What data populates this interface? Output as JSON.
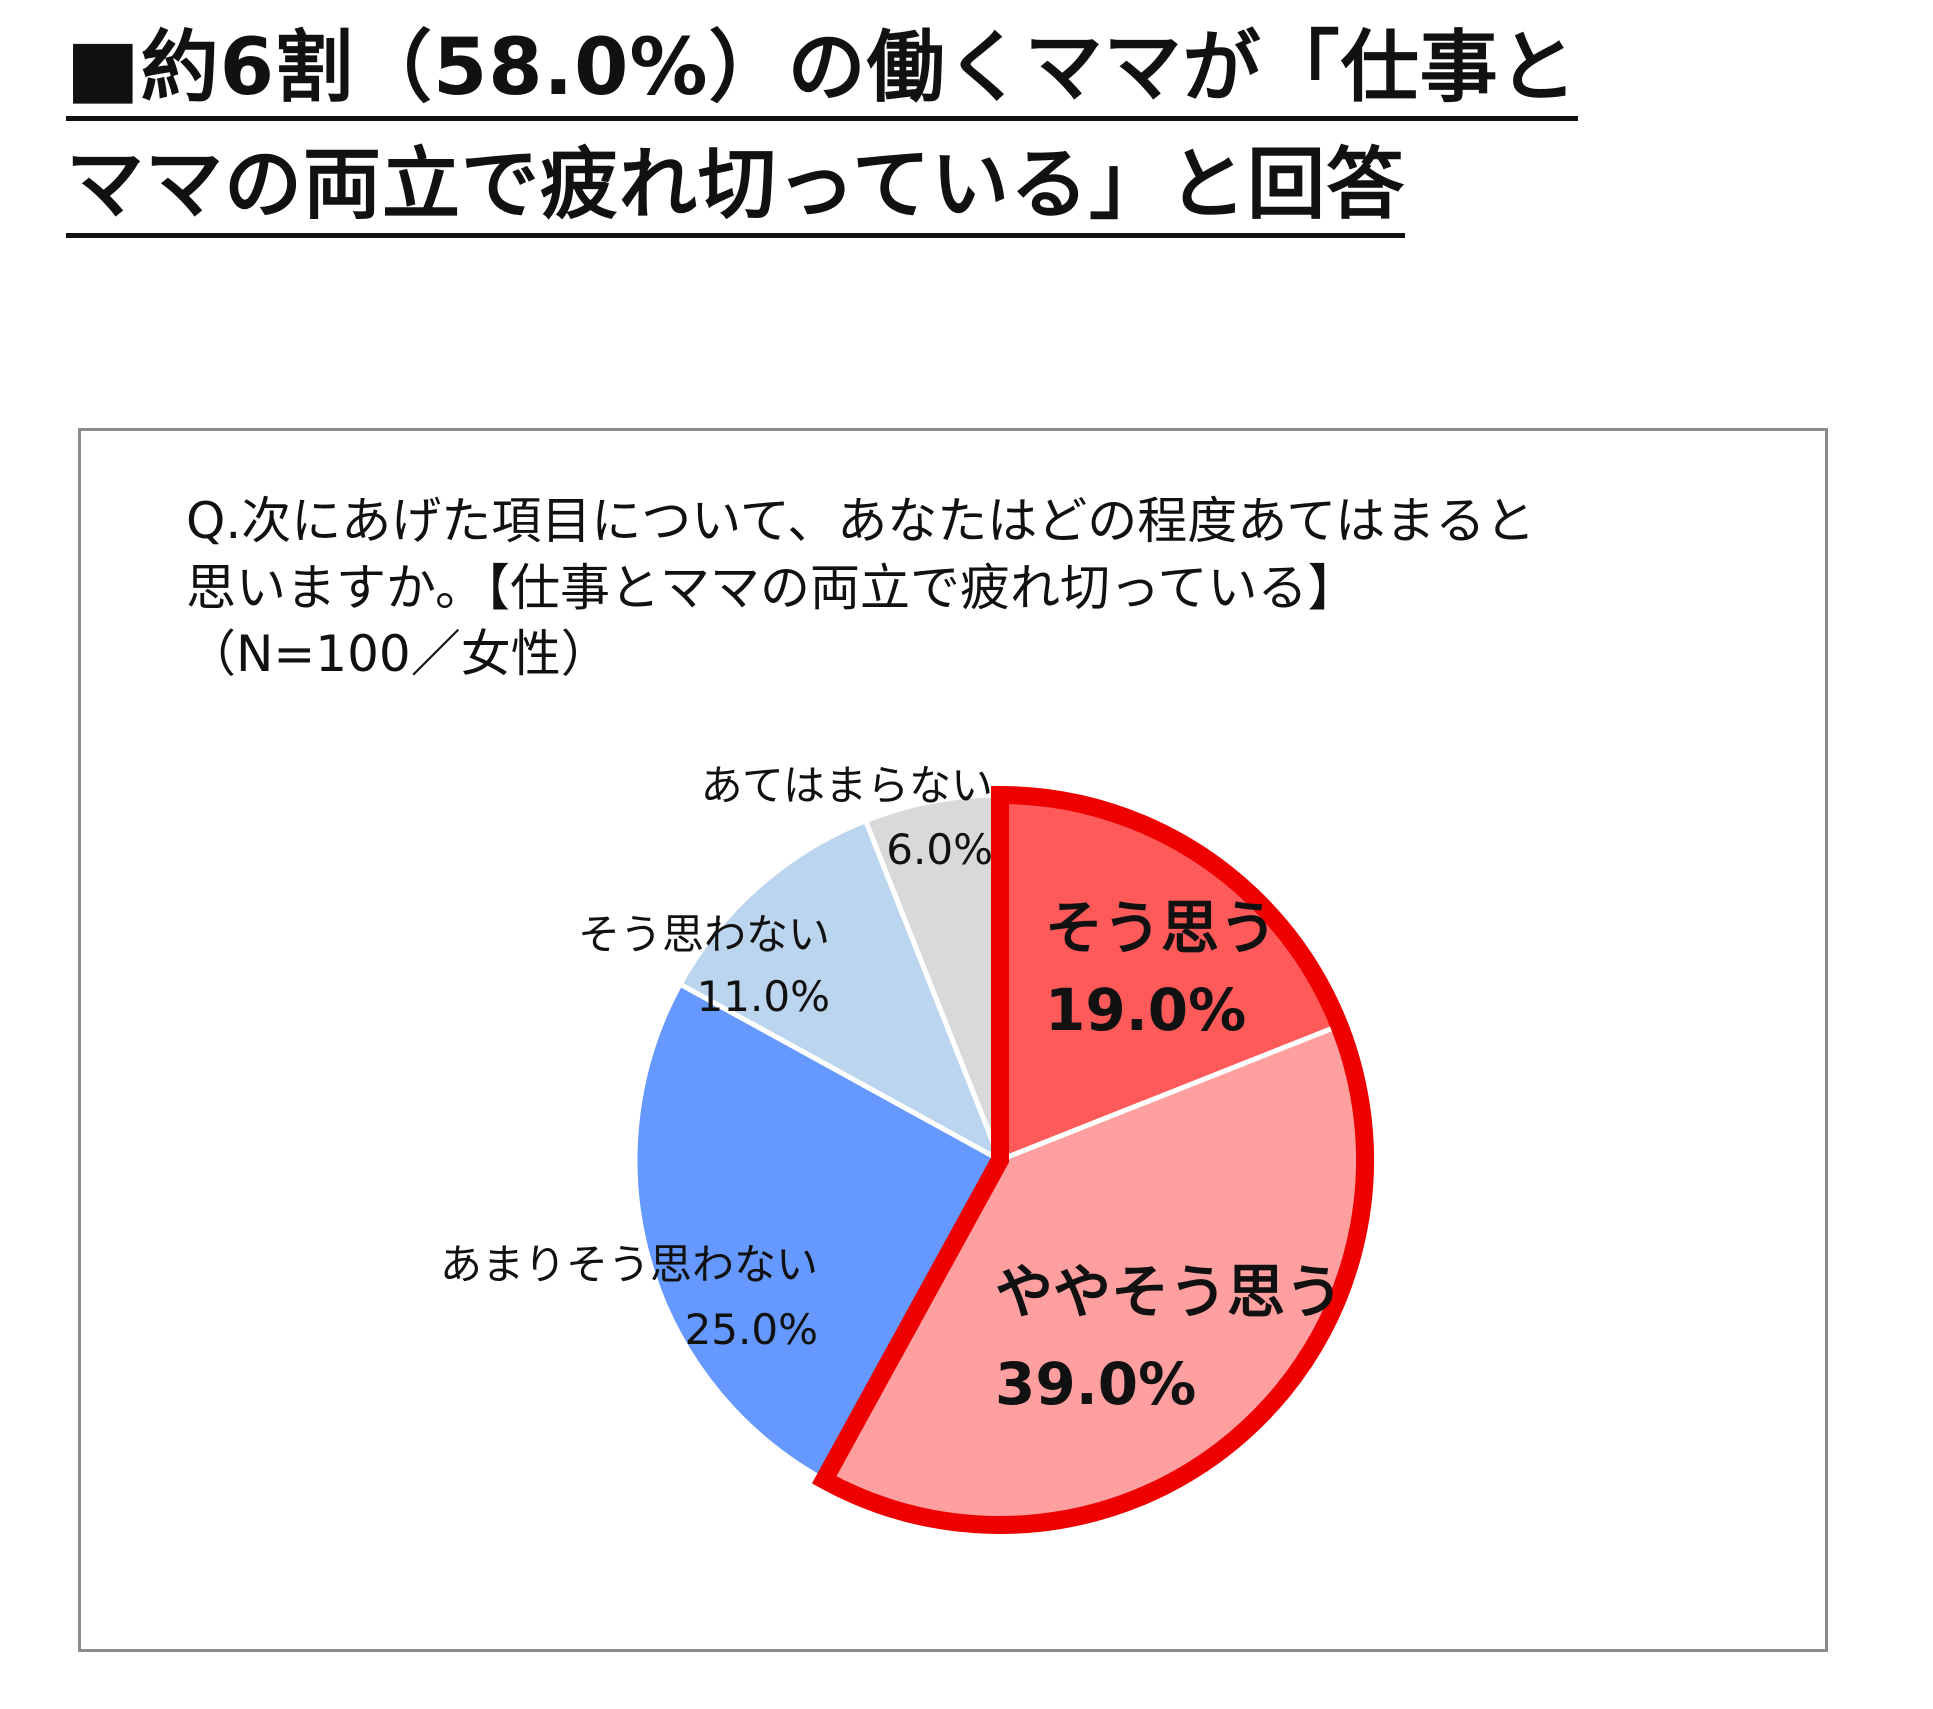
{
  "headline": {
    "line1": "■約6割（58.0%）の働くママが「仕事と",
    "line2": "ママの両立で疲れ切っている」と回答"
  },
  "question": {
    "line1": "Q.次にあげた項目について、あなたはどの程度あてはまると",
    "line2": "思いますか。【仕事とママの両立で疲れ切っている】",
    "line3": "（N=100／女性）"
  },
  "colors": {
    "highlight_outline": "#ee0000",
    "slice_divider": "#ffffff",
    "frame_border": "#8c8c8c"
  },
  "chart_data": {
    "type": "pie",
    "unit": "%",
    "start": "12 o'clock",
    "direction": "clockwise",
    "highlighted_group": [
      "そう思う",
      "ややそう思う"
    ],
    "slices": [
      {
        "label": "そう思う",
        "value": 19.0,
        "value_label": "19.0%",
        "color": "#ff5a5a",
        "emphasis": true
      },
      {
        "label": "ややそう思う",
        "value": 39.0,
        "value_label": "39.0%",
        "color": "#ff9f9f",
        "emphasis": true
      },
      {
        "label": "あまりそう思わない",
        "value": 25.0,
        "value_label": "25.0%",
        "color": "#6699ff",
        "emphasis": false
      },
      {
        "label": "そう思わない",
        "value": 11.0,
        "value_label": "11.0%",
        "color": "#bcd5ee",
        "emphasis": false
      },
      {
        "label": "あてはまらない",
        "value": 6.0,
        "value_label": "6.0%",
        "color": "#d9d9d9",
        "emphasis": false
      }
    ]
  }
}
